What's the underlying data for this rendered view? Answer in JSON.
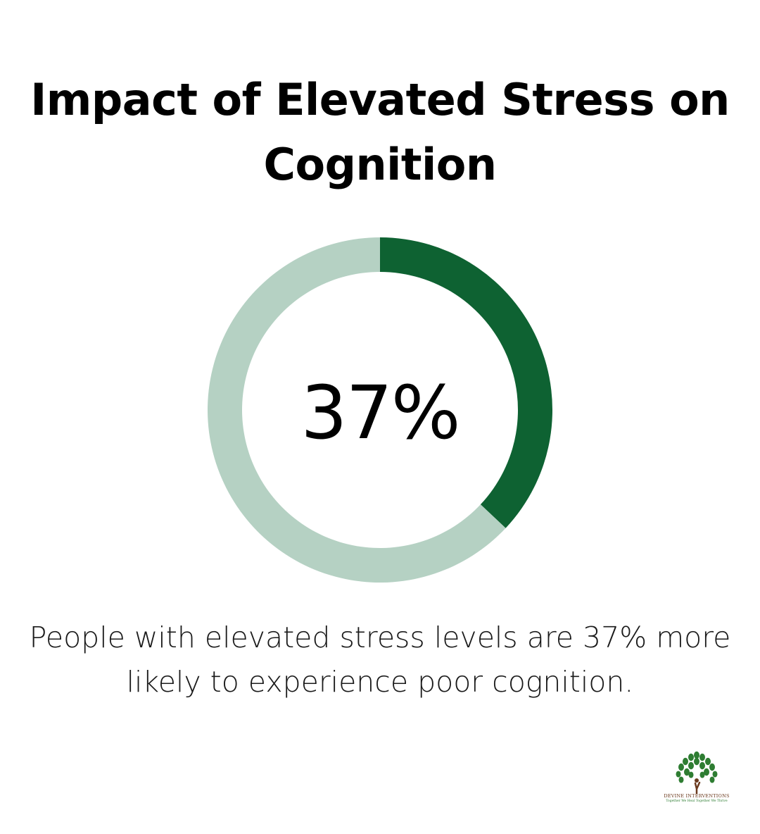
{
  "title": "Impact of Elevated Stress on Cognition",
  "chart_data": {
    "type": "pie",
    "title": "Impact of Elevated Stress on Cognition",
    "center_label": "37%",
    "slices": [
      {
        "value": 37,
        "color": "#0e6232"
      },
      {
        "value": 63,
        "color": "#b5d1c3"
      }
    ]
  },
  "caption": "People with elevated stress levels are 37% more likely to experience poor cognition.",
  "logo": {
    "name": "DEVINE INTERVENTIONS",
    "tagline": "Together We Heal Together We Thrive",
    "icon": "tree-icon",
    "colors": {
      "leaves": "#2e7d32",
      "trunk": "#6b3a1e"
    }
  }
}
